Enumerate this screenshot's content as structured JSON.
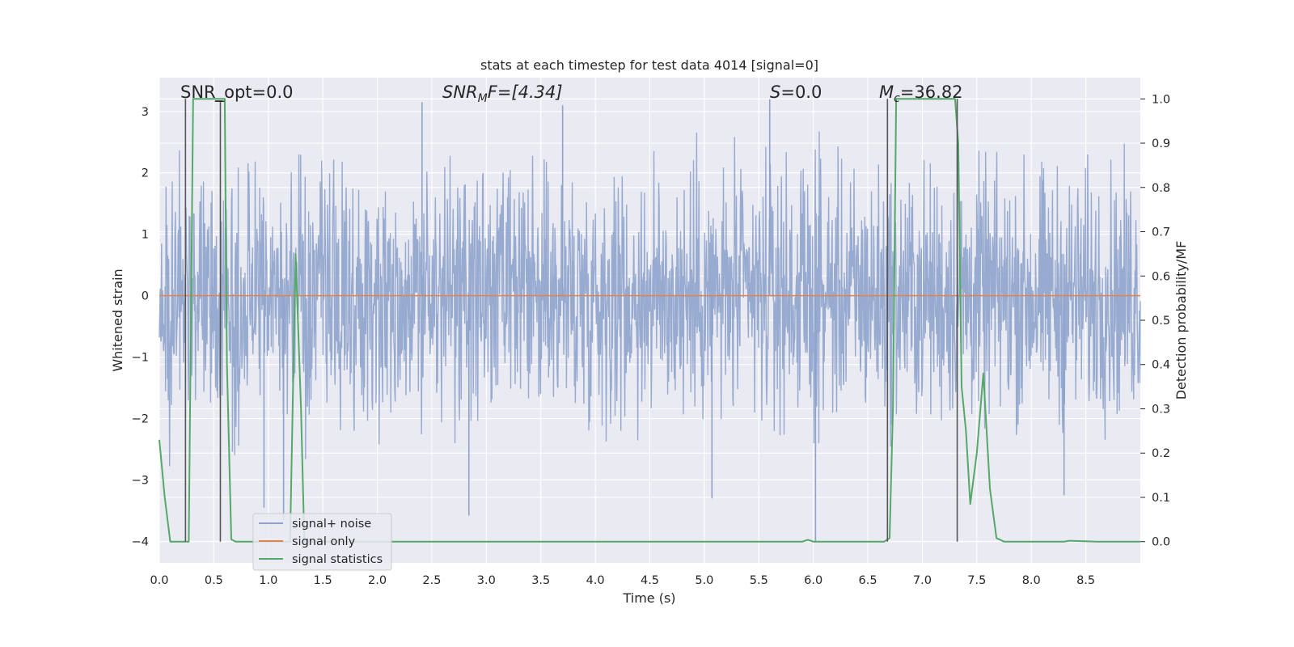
{
  "chart_data": {
    "type": "line",
    "title": "stats at each timestep for test data 4014 [signal=0]",
    "xlabel": "Time (s)",
    "ylabel": "Whitened strain",
    "ylabel_right": "Detection probability/MF",
    "xlim": [
      0,
      9.0
    ],
    "ylim": [
      -4.35,
      3.55
    ],
    "ylim_right": [
      -0.048,
      1.048
    ],
    "grid": true,
    "xticks": [
      "0.0",
      "0.5",
      "1.0",
      "1.5",
      "2.0",
      "2.5",
      "3.0",
      "3.5",
      "4.0",
      "4.5",
      "5.0",
      "5.5",
      "6.0",
      "6.5",
      "7.0",
      "7.5",
      "8.0",
      "8.5"
    ],
    "yticks_left": [
      "3",
      "2",
      "1",
      "0",
      "−1",
      "−2",
      "−3",
      "−4"
    ],
    "yticks_right": [
      "1.0",
      "0.9",
      "0.8",
      "0.7",
      "0.6",
      "0.5",
      "0.4",
      "0.3",
      "0.2",
      "0.1",
      "0.0"
    ],
    "annotations": {
      "snr_opt": "SNR_opt=0.0",
      "snr_mf_base": "SNR",
      "snr_mf_sub": "M",
      "snr_mf_tail": "F=[4.34]",
      "s_stat": "S",
      "s_tail": "=0.0",
      "mc_base": "M",
      "mc_sub": "c",
      "mc_tail": "=36.82"
    },
    "legend": {
      "placement": "lower-left",
      "entries": [
        "signal+ noise",
        "signal only",
        "signal statistics"
      ]
    },
    "colors": {
      "noise": "#8ea3cc",
      "signal": "#dd8452",
      "stats": "#55a868",
      "vline": "#555555",
      "background": "#eaeaf2",
      "grid": "#ffffff"
    },
    "series": [
      {
        "name": "signal+ noise",
        "description_values": "noise band roughly -2 to 2, spikes to about +3.1 and -4",
        "spikes": [
          [
            0.96,
            -3.45
          ],
          [
            1.14,
            -3.65
          ],
          [
            2.84,
            -3.58
          ],
          [
            5.07,
            -3.3
          ],
          [
            6.02,
            -4.0
          ],
          [
            7.32,
            2.45
          ],
          [
            8.3,
            -3.25
          ],
          [
            2.41,
            3.15
          ],
          [
            3.7,
            3.1
          ],
          [
            5.6,
            3.2
          ]
        ]
      },
      {
        "name": "signal only",
        "values_constant": 0
      },
      {
        "name": "signal statistics",
        "x": [
          0.0,
          0.05,
          0.1,
          0.2,
          0.24,
          0.27,
          0.31,
          0.35,
          0.4,
          0.5,
          0.55,
          0.6,
          0.62,
          0.66,
          0.7,
          0.8,
          1.0,
          1.2,
          1.25,
          1.3,
          1.33,
          1.4,
          1.5,
          2.0,
          3.0,
          4.0,
          5.0,
          5.9,
          5.95,
          6.0,
          6.1,
          6.2,
          6.35,
          6.5,
          6.65,
          6.7,
          6.73,
          6.76,
          6.8,
          7.0,
          7.2,
          7.3,
          7.33,
          7.36,
          7.4,
          7.44,
          7.5,
          7.56,
          7.62,
          7.68,
          7.75,
          7.8,
          8.0,
          8.3,
          8.35,
          8.6,
          9.0
        ],
        "y": [
          0.23,
          0.1,
          0.0,
          0.0,
          0.0,
          0.0,
          1.0,
          1.0,
          1.0,
          1.0,
          1.0,
          1.0,
          0.4,
          0.005,
          0.0,
          0.0,
          0.0,
          0.0,
          0.65,
          0.3,
          0.0,
          0.0,
          0.0,
          0.0,
          0.0,
          0.0,
          0.0,
          0.0,
          0.004,
          0.0,
          0.0,
          0.0,
          0.0,
          0.0,
          0.0,
          0.008,
          0.3,
          1.0,
          1.0,
          1.0,
          1.0,
          1.0,
          0.9,
          0.35,
          0.25,
          0.085,
          0.2,
          0.38,
          0.12,
          0.008,
          0.0,
          0.0,
          0.0,
          0.0,
          0.002,
          0.0,
          0.0
        ]
      }
    ],
    "vlines_stats": [
      {
        "x": 0.24,
        "y0": 0.0,
        "y1": 1.0
      },
      {
        "x": 0.56,
        "y0": 0.0,
        "y1": 0.995
      },
      {
        "x": 6.68,
        "y0": 0.0,
        "y1": 1.0
      },
      {
        "x": 7.32,
        "y0": 0.0,
        "y1": 1.0
      }
    ]
  }
}
